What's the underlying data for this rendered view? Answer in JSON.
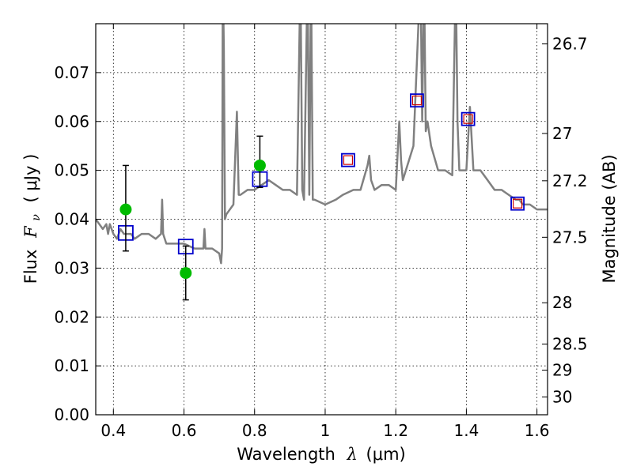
{
  "chart_data": {
    "type": "line",
    "xlabel": "Wavelength",
    "xlabel_symbol": "λ",
    "xlabel_unit": "(μm)",
    "ylabel": "Flux",
    "ylabel_symbol": "F",
    "ylabel_symbol_sub": "ν",
    "ylabel_unit": "( μJy )",
    "y2label": "Magnitude (AB)",
    "xlim": [
      0.35,
      1.63
    ],
    "ylim": [
      0.0,
      0.08
    ],
    "grid": true,
    "x_ticks": [
      {
        "value": 0.4,
        "label": "0.4"
      },
      {
        "value": 0.6,
        "label": "0.6"
      },
      {
        "value": 0.8,
        "label": "0.8"
      },
      {
        "value": 1.0,
        "label": "1"
      },
      {
        "value": 1.2,
        "label": "1.2"
      },
      {
        "value": 1.4,
        "label": "1.4"
      },
      {
        "value": 1.6,
        "label": "1.6"
      }
    ],
    "y_ticks": [
      {
        "value": 0.0,
        "label": "0.00"
      },
      {
        "value": 0.01,
        "label": "0.01"
      },
      {
        "value": 0.02,
        "label": "0.02"
      },
      {
        "value": 0.03,
        "label": "0.03"
      },
      {
        "value": 0.04,
        "label": "0.04"
      },
      {
        "value": 0.05,
        "label": "0.05"
      },
      {
        "value": 0.06,
        "label": "0.06"
      },
      {
        "value": 0.07,
        "label": "0.07"
      }
    ],
    "y2_ticks": [
      {
        "mag": 26.7,
        "label": "26.7"
      },
      {
        "mag": 27,
        "label": "27"
      },
      {
        "mag": 27.2,
        "label": "27.2"
      },
      {
        "mag": 27.5,
        "label": "27.5"
      },
      {
        "mag": 28,
        "label": "28"
      },
      {
        "mag": 28.5,
        "label": "28.5"
      },
      {
        "mag": 29,
        "label": "29"
      },
      {
        "mag": 30,
        "label": "30"
      }
    ],
    "colors": {
      "model": "#808080",
      "observed": "#00bb00",
      "model_photometry": "#0000cc",
      "model_photometry_inner": "#cc0000",
      "errorbar": "#000000",
      "grid": "#000000"
    },
    "series": [
      {
        "style": "line",
        "x": [
          0.35,
          0.36,
          0.37,
          0.38,
          0.385,
          0.39,
          0.4,
          0.41,
          0.42,
          0.43,
          0.44,
          0.45,
          0.46,
          0.48,
          0.5,
          0.52,
          0.535,
          0.538,
          0.541,
          0.55,
          0.57,
          0.6,
          0.63,
          0.655,
          0.658,
          0.661,
          0.68,
          0.7,
          0.705,
          0.708,
          0.71,
          0.713,
          0.716,
          0.72,
          0.74,
          0.75,
          0.755,
          0.76,
          0.78,
          0.8,
          0.82,
          0.84,
          0.86,
          0.88,
          0.9,
          0.92,
          0.93,
          0.935,
          0.94,
          0.95,
          0.955,
          0.96,
          0.965,
          0.97,
          1.0,
          1.03,
          1.05,
          1.08,
          1.1,
          1.12,
          1.125,
          1.13,
          1.14,
          1.16,
          1.18,
          1.2,
          1.21,
          1.215,
          1.22,
          1.25,
          1.27,
          1.275,
          1.28,
          1.285,
          1.29,
          1.3,
          1.32,
          1.34,
          1.36,
          1.37,
          1.375,
          1.38,
          1.4,
          1.41,
          1.42,
          1.44,
          1.46,
          1.48,
          1.5,
          1.52,
          1.54,
          1.55,
          1.56,
          1.58,
          1.6,
          1.62,
          1.63
        ],
        "y": [
          0.04,
          0.039,
          0.038,
          0.039,
          0.037,
          0.039,
          0.037,
          0.036,
          0.038,
          0.037,
          0.037,
          0.037,
          0.036,
          0.037,
          0.037,
          0.036,
          0.037,
          0.044,
          0.037,
          0.035,
          0.035,
          0.035,
          0.034,
          0.034,
          0.038,
          0.034,
          0.034,
          0.033,
          0.031,
          0.034,
          0.09,
          0.075,
          0.04,
          0.041,
          0.043,
          0.062,
          0.045,
          0.045,
          0.046,
          0.046,
          0.047,
          0.048,
          0.047,
          0.046,
          0.046,
          0.045,
          0.09,
          0.046,
          0.044,
          0.09,
          0.045,
          0.09,
          0.044,
          0.044,
          0.043,
          0.044,
          0.045,
          0.046,
          0.046,
          0.051,
          0.053,
          0.048,
          0.046,
          0.047,
          0.047,
          0.046,
          0.06,
          0.052,
          0.048,
          0.055,
          0.09,
          0.06,
          0.09,
          0.058,
          0.06,
          0.055,
          0.05,
          0.05,
          0.049,
          0.09,
          0.06,
          0.05,
          0.05,
          0.063,
          0.05,
          0.05,
          0.048,
          0.046,
          0.046,
          0.045,
          0.044,
          0.044,
          0.043,
          0.043,
          0.042,
          0.042,
          0.042
        ]
      },
      {
        "style": "errorbar",
        "x": [
          0.435,
          0.605,
          0.815
        ],
        "y": [
          0.042,
          0.029,
          0.051
        ],
        "yerr_low": [
          0.0085,
          0.0055,
          0.0045
        ],
        "yerr_high": [
          0.009,
          0.0055,
          0.006
        ]
      },
      {
        "style": "squares",
        "x": [
          0.435,
          0.605,
          0.815
        ],
        "y": [
          0.0372,
          0.0344,
          0.0482
        ]
      },
      {
        "style": "squares-nested",
        "x": [
          1.065,
          1.26,
          1.405,
          1.545
        ],
        "y": [
          0.0521,
          0.0643,
          0.0605,
          0.0432
        ]
      }
    ]
  }
}
